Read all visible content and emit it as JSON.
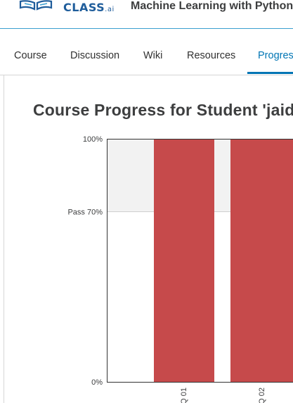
{
  "header": {
    "logo_text": "CLASS",
    "logo_suffix": ".ai",
    "course_title": "Machine Learning with Python"
  },
  "tabs": [
    {
      "label": "Course"
    },
    {
      "label": "Discussion"
    },
    {
      "label": "Wiki"
    },
    {
      "label": "Resources"
    },
    {
      "label": "Progress",
      "active": true
    }
  ],
  "page_title": "Course Progress for Student 'jaid",
  "colors": {
    "accent": "#0075b4",
    "bar": "#c64a4b",
    "pass_band": "#f2f2f2"
  },
  "chart_data": {
    "type": "bar",
    "categories": [
      "Q 01",
      "Q 02"
    ],
    "values": [
      100,
      100
    ],
    "ylim": [
      0,
      100
    ],
    "yticks": [
      {
        "value": 0,
        "label": "0%"
      },
      {
        "value": 70,
        "label": "Pass 70%"
      },
      {
        "value": 100,
        "label": "100%"
      }
    ],
    "pass_threshold": 70
  }
}
